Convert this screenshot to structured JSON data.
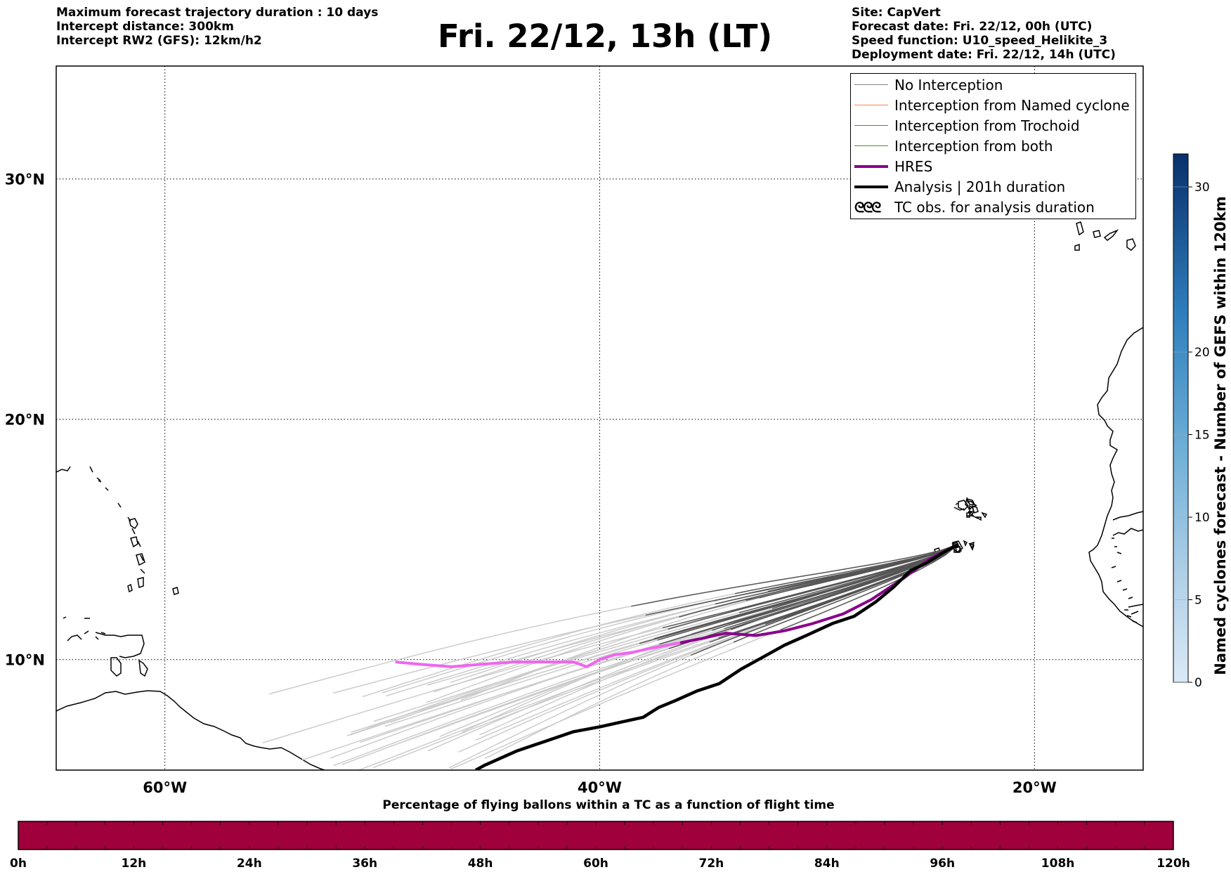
{
  "header": {
    "left_lines": [
      "Maximum forecast trajectory duration : 10 days",
      "Intercept distance: 300km",
      "Intercept RW2 (GFS):  12km/h2"
    ],
    "title": "Fri. 22/12, 13h (LT)",
    "right_lines": [
      "Site: CapVert",
      "Forecast date: Fri. 22/12, 00h (UTC)",
      "Speed function: U10_speed_Helikite_3",
      "Deployment date: Fri. 22/12, 14h (UTC)"
    ]
  },
  "map": {
    "lon_range": [
      -65,
      -15
    ],
    "lat_range": [
      5.4,
      34.7
    ],
    "lon_ticks": [
      {
        "value": -60,
        "label": "60°W"
      },
      {
        "value": -40,
        "label": "40°W"
      },
      {
        "value": -20,
        "label": "20°W"
      }
    ],
    "lat_ticks": [
      {
        "value": 30,
        "label": "30°N"
      },
      {
        "value": 20,
        "label": "20°N"
      },
      {
        "value": 10,
        "label": "10°N"
      }
    ],
    "grid": "dotted",
    "launch_site": {
      "lon": -23.5,
      "lat": 14.8
    },
    "colors": {
      "no_interception_near": "#555555",
      "no_interception_far": "#cccccc",
      "named_cyclone": "#ff7f50",
      "trochoid": "#808000",
      "both": "#2ca02c",
      "hres": "#8b008b",
      "hres_extended": "#ee66ee",
      "analysis": "#000000"
    },
    "hres_track": [
      [
        -23.5,
        14.8
      ],
      [
        -24.8,
        14.2
      ],
      [
        -26.0,
        13.4
      ],
      [
        -27.5,
        12.5
      ],
      [
        -28.8,
        11.9
      ],
      [
        -30.2,
        11.5
      ],
      [
        -31.5,
        11.2
      ],
      [
        -32.8,
        11.0
      ],
      [
        -34.2,
        11.1
      ],
      [
        -35.2,
        10.9
      ],
      [
        -36.3,
        10.7
      ]
    ],
    "hres_extended_track": [
      [
        -36.3,
        10.7
      ],
      [
        -37.5,
        10.5
      ],
      [
        -38.5,
        10.3
      ],
      [
        -39.3,
        10.2
      ],
      [
        -40.0,
        10.0
      ],
      [
        -40.6,
        9.7
      ],
      [
        -41.2,
        9.9
      ],
      [
        -42.5,
        9.9
      ],
      [
        -44.0,
        9.9
      ],
      [
        -45.5,
        9.8
      ],
      [
        -46.8,
        9.7
      ],
      [
        -48.2,
        9.8
      ],
      [
        -49.4,
        9.9
      ]
    ],
    "analysis_track": [
      [
        -23.5,
        14.8
      ],
      [
        -24.3,
        14.4
      ],
      [
        -25.0,
        14.0
      ],
      [
        -25.7,
        13.7
      ],
      [
        -26.5,
        13.0
      ],
      [
        -27.3,
        12.4
      ],
      [
        -28.3,
        11.8
      ],
      [
        -29.3,
        11.5
      ],
      [
        -30.5,
        11.0
      ],
      [
        -31.5,
        10.6
      ],
      [
        -32.5,
        10.1
      ],
      [
        -33.5,
        9.6
      ],
      [
        -34.5,
        9.0
      ],
      [
        -35.5,
        8.7
      ],
      [
        -36.5,
        8.3
      ],
      [
        -37.3,
        8.0
      ],
      [
        -38.0,
        7.6
      ],
      [
        -39.0,
        7.4
      ],
      [
        -40.0,
        7.2
      ],
      [
        -41.2,
        7.0
      ],
      [
        -42.5,
        6.6
      ],
      [
        -43.8,
        6.2
      ],
      [
        -44.8,
        5.8
      ],
      [
        -45.3,
        5.6
      ],
      [
        -45.7,
        5.4
      ]
    ]
  },
  "legend": {
    "items": [
      {
        "label": "No Interception",
        "color": "#808080",
        "width": 1.5
      },
      {
        "label": "Interception from Named cyclone",
        "color": "#ff7f50",
        "width": 1.5
      },
      {
        "label": "Interception from Trochoid",
        "color": "#808000",
        "width": 1.5
      },
      {
        "label": "Interception from both",
        "color": "#2ca02c",
        "width": 1.5
      },
      {
        "label": "HRES",
        "color": "#8b008b",
        "width": 4
      },
      {
        "label": "Analysis | 201h duration",
        "color": "#000000",
        "width": 4
      }
    ],
    "tc_label": "TC obs. for analysis duration",
    "tc_symbol": "ᘓᘓᘓ"
  },
  "colorbar_right": {
    "title": "Named cyclones forecast - Number of GEFS within 120km",
    "range": [
      0,
      32
    ],
    "ticks": [
      0,
      5,
      10,
      15,
      20,
      30
    ],
    "color_low": "#dbe9f6",
    "color_high": "#08306b"
  },
  "colorbar_bottom": {
    "title": "Percentage of flying ballons within a TC as a function of flight time",
    "ticks": [
      "0h",
      "12h",
      "24h",
      "36h",
      "48h",
      "60h",
      "72h",
      "84h",
      "96h",
      "108h",
      "120h"
    ],
    "minor_per_major": 4,
    "fill": "#a0003c"
  }
}
